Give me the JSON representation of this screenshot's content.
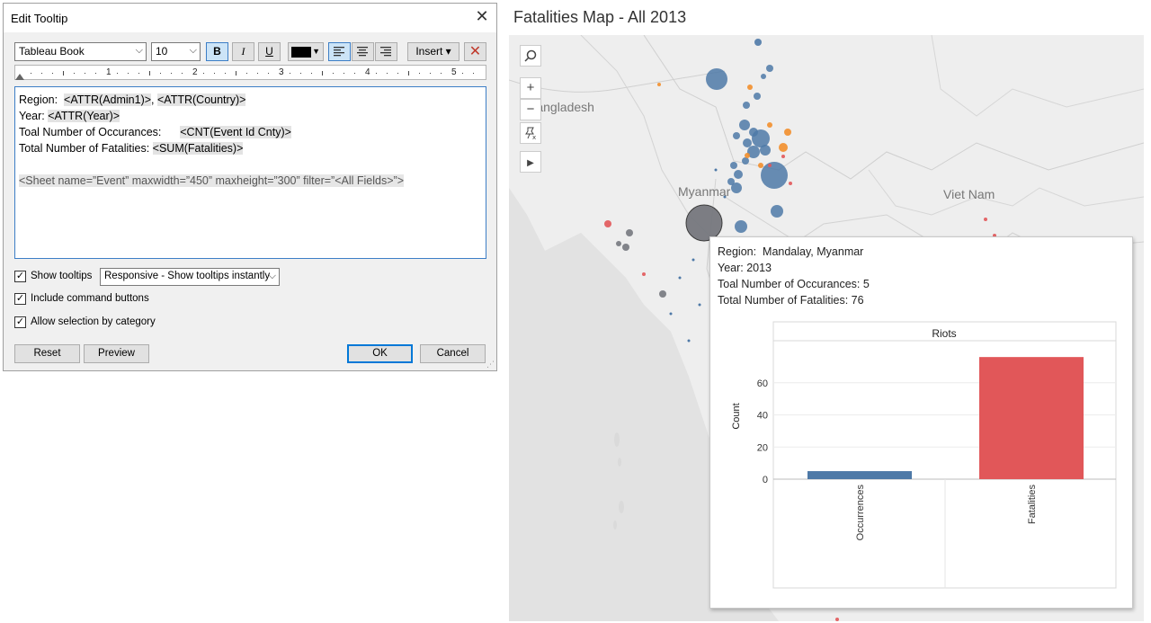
{
  "dialog": {
    "title": "Edit Tooltip",
    "toolbar": {
      "font": "Tableau Book",
      "size": "10",
      "bold": "B",
      "italic": "I",
      "underline": "U",
      "text_color": "#000000",
      "insert_label": "Insert ▾"
    },
    "ruler": [
      "1",
      "2",
      "3",
      "4",
      "5"
    ],
    "editor": {
      "line1_label": "Region:  ",
      "line1_field1": "<ATTR(Admin1)>",
      "line1_sep": ", ",
      "line1_field2": "<ATTR(Country)>",
      "line2_label": "Year: ",
      "line2_field": "<ATTR(Year)>",
      "line3_label": "Toal Number of Occurances:      ",
      "line3_field": "<CNT(Event Id Cnty)>",
      "line4_label": "Total Number of Fatalities: ",
      "line4_field": "<SUM(Fatalities)>",
      "sheet": "<Sheet name=”Event” maxwidth=”450” maxheight=”300” filter=”<All Fields>”>"
    },
    "options": {
      "show_tooltips": "Show tooltips",
      "show_tooltips_checked": true,
      "mode": "Responsive - Show tooltips instantly",
      "command_buttons": "Include command buttons",
      "command_buttons_checked": true,
      "selection_by_category": "Allow selection by category",
      "selection_by_category_checked": true
    },
    "buttons": {
      "reset": "Reset",
      "preview": "Preview",
      "ok": "OK",
      "cancel": "Cancel"
    }
  },
  "map": {
    "title": "Fatalities Map - All  2013",
    "labels": {
      "bangladesh": "Bangladesh",
      "myanmar": "Myanmar",
      "vietnam": "Viet Nam"
    },
    "controls": [
      "search-icon",
      "zoom-in-icon",
      "zoom-out-icon",
      "pin-icon",
      "play-icon"
    ]
  },
  "tooltip": {
    "region": "Region:  Mandalay, Myanmar",
    "year": "Year: 2013",
    "occurances": "Toal Number of Occurances: 5",
    "fatalities": "Total Number of Fatalities: 76"
  },
  "chart_data": {
    "type": "bar",
    "title": "Riots",
    "ylabel": "Count",
    "xlabel": "",
    "categories": [
      "Occurrences",
      "Fatalities"
    ],
    "values": [
      5,
      76
    ],
    "colors": [
      "#4e79a7",
      "#e15759"
    ],
    "yticks": [
      0,
      20,
      40,
      60
    ],
    "ylim": [
      0,
      80
    ],
    "grid": true
  }
}
